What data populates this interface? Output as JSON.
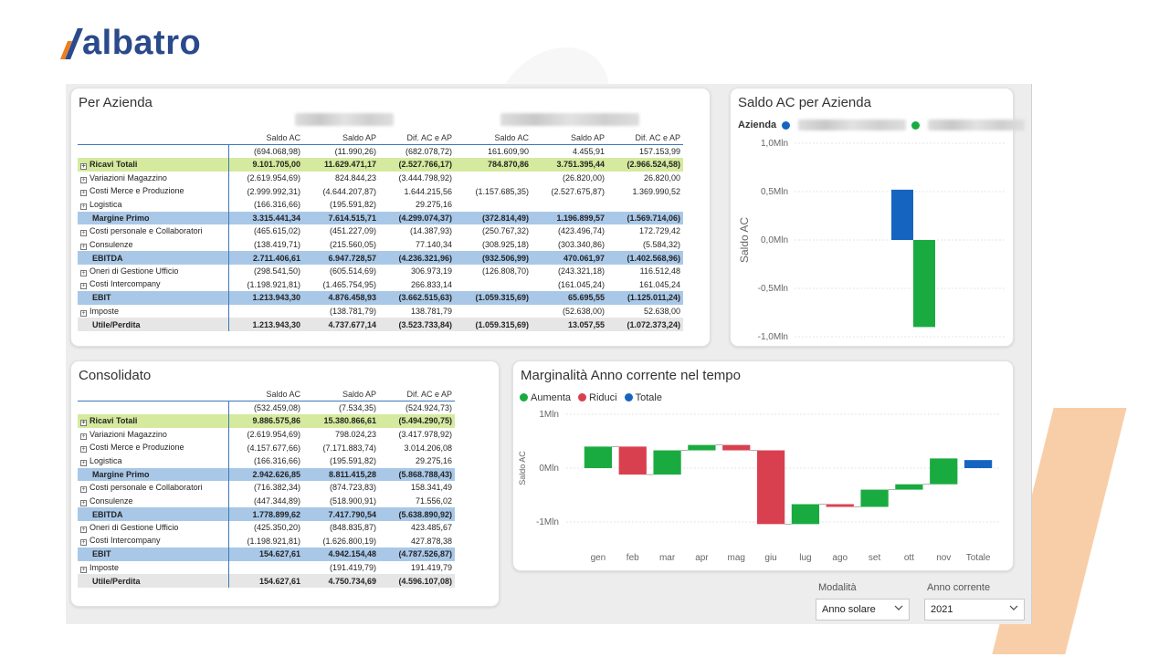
{
  "brand": {
    "name": "albatro",
    "colors": {
      "orange": "#f07c1e",
      "navy": "#2a4a8b"
    }
  },
  "per_azienda": {
    "title": "Per Azienda",
    "columns": [
      "Saldo AC",
      "Saldo AP",
      "Dif. AC e AP",
      "Saldo AC",
      "Saldo AP",
      "Dif. AC e AP"
    ],
    "rows": [
      {
        "label": "",
        "style": "plain",
        "expand": false,
        "values": [
          "(694.068,98)",
          "(11.990,26)",
          "(682.078,72)",
          "161.609,90",
          "4.455,91",
          "157.153,99"
        ]
      },
      {
        "label": "Ricavi Totali",
        "style": "green",
        "expand": true,
        "values": [
          "9.101.705,00",
          "11.629.471,17",
          "(2.527.766,17)",
          "784.870,86",
          "3.751.395,44",
          "(2.966.524,58)"
        ]
      },
      {
        "label": "Variazioni Magazzino",
        "style": "plain",
        "expand": true,
        "values": [
          "(2.619.954,69)",
          "824.844,23",
          "(3.444.798,92)",
          "",
          "(26.820,00)",
          "26.820,00"
        ]
      },
      {
        "label": "Costi Merce e Produzione",
        "style": "plain",
        "expand": true,
        "values": [
          "(2.999.992,31)",
          "(4.644.207,87)",
          "1.644.215,56",
          "(1.157.685,35)",
          "(2.527.675,87)",
          "1.369.990,52"
        ]
      },
      {
        "label": "Logistica",
        "style": "plain",
        "expand": true,
        "values": [
          "(166.316,66)",
          "(195.591,82)",
          "29.275,16",
          "",
          "",
          ""
        ]
      },
      {
        "label": "Margine Primo",
        "style": "blue",
        "expand": false,
        "values": [
          "3.315.441,34",
          "7.614.515,71",
          "(4.299.074,37)",
          "(372.814,49)",
          "1.196.899,57",
          "(1.569.714,06)"
        ]
      },
      {
        "label": "Costi personale e Collaboratori",
        "style": "plain",
        "expand": true,
        "values": [
          "(465.615,02)",
          "(451.227,09)",
          "(14.387,93)",
          "(250.767,32)",
          "(423.496,74)",
          "172.729,42"
        ]
      },
      {
        "label": "Consulenze",
        "style": "plain",
        "expand": true,
        "values": [
          "(138.419,71)",
          "(215.560,05)",
          "77.140,34",
          "(308.925,18)",
          "(303.340,86)",
          "(5.584,32)"
        ]
      },
      {
        "label": "EBITDA",
        "style": "blue",
        "expand": false,
        "values": [
          "2.711.406,61",
          "6.947.728,57",
          "(4.236.321,96)",
          "(932.506,99)",
          "470.061,97",
          "(1.402.568,96)"
        ]
      },
      {
        "label": "Oneri di Gestione Ufficio",
        "style": "plain",
        "expand": true,
        "values": [
          "(298.541,50)",
          "(605.514,69)",
          "306.973,19",
          "(126.808,70)",
          "(243.321,18)",
          "116.512,48"
        ]
      },
      {
        "label": "Costi Intercompany",
        "style": "plain",
        "expand": true,
        "values": [
          "(1.198.921,81)",
          "(1.465.754,95)",
          "266.833,14",
          "",
          "(161.045,24)",
          "161.045,24"
        ]
      },
      {
        "label": "EBIT",
        "style": "blue",
        "expand": false,
        "values": [
          "1.213.943,30",
          "4.876.458,93",
          "(3.662.515,63)",
          "(1.059.315,69)",
          "65.695,55",
          "(1.125.011,24)"
        ]
      },
      {
        "label": "Imposte",
        "style": "plain",
        "expand": true,
        "values": [
          "",
          "(138.781,79)",
          "138.781,79",
          "",
          "(52.638,00)",
          "52.638,00"
        ]
      },
      {
        "label": "Utile/Perdita",
        "style": "grey",
        "expand": false,
        "values": [
          "1.213.943,30",
          "4.737.677,14",
          "(3.523.733,84)",
          "(1.059.315,69)",
          "13.057,55",
          "(1.072.373,24)"
        ]
      }
    ]
  },
  "consolidato": {
    "title": "Consolidato",
    "columns": [
      "Saldo AC",
      "Saldo AP",
      "Dif. AC e AP"
    ],
    "rows": [
      {
        "label": "",
        "style": "plain",
        "expand": false,
        "values": [
          "(532.459,08)",
          "(7.534,35)",
          "(524.924,73)"
        ]
      },
      {
        "label": "Ricavi Totali",
        "style": "green",
        "expand": true,
        "values": [
          "9.886.575,86",
          "15.380.866,61",
          "(5.494.290,75)"
        ]
      },
      {
        "label": "Variazioni Magazzino",
        "style": "plain",
        "expand": true,
        "values": [
          "(2.619.954,69)",
          "798.024,23",
          "(3.417.978,92)"
        ]
      },
      {
        "label": "Costi Merce e Produzione",
        "style": "plain",
        "expand": true,
        "values": [
          "(4.157.677,66)",
          "(7.171.883,74)",
          "3.014.206,08"
        ]
      },
      {
        "label": "Logistica",
        "style": "plain",
        "expand": true,
        "values": [
          "(166.316,66)",
          "(195.591,82)",
          "29.275,16"
        ]
      },
      {
        "label": "Margine Primo",
        "style": "blue",
        "expand": false,
        "values": [
          "2.942.626,85",
          "8.811.415,28",
          "(5.868.788,43)"
        ]
      },
      {
        "label": "Costi personale e Collaboratori",
        "style": "plain",
        "expand": true,
        "values": [
          "(716.382,34)",
          "(874.723,83)",
          "158.341,49"
        ]
      },
      {
        "label": "Consulenze",
        "style": "plain",
        "expand": true,
        "values": [
          "(447.344,89)",
          "(518.900,91)",
          "71.556,02"
        ]
      },
      {
        "label": "EBITDA",
        "style": "blue",
        "expand": false,
        "values": [
          "1.778.899,62",
          "7.417.790,54",
          "(5.638.890,92)"
        ]
      },
      {
        "label": "Oneri di Gestione Ufficio",
        "style": "plain",
        "expand": true,
        "values": [
          "(425.350,20)",
          "(848.835,87)",
          "423.485,67"
        ]
      },
      {
        "label": "Costi Intercompany",
        "style": "plain",
        "expand": true,
        "values": [
          "(1.198.921,81)",
          "(1.626.800,19)",
          "427.878,38"
        ]
      },
      {
        "label": "EBIT",
        "style": "blue",
        "expand": false,
        "values": [
          "154.627,61",
          "4.942.154,48",
          "(4.787.526,87)"
        ]
      },
      {
        "label": "Imposte",
        "style": "plain",
        "expand": true,
        "values": [
          "",
          "(191.419,79)",
          "191.419,79"
        ]
      },
      {
        "label": "Utile/Perdita",
        "style": "grey",
        "expand": false,
        "values": [
          "154.627,61",
          "4.750.734,69",
          "(4.596.107,08)"
        ]
      }
    ]
  },
  "saldo_chart": {
    "title": "Saldo AC per Azienda",
    "legend_title": "Azienda",
    "ylabel": "Saldo AC",
    "colors": [
      "#1565c0",
      "#1aab40"
    ]
  },
  "marginalita_chart": {
    "title": "Marginalità Anno corrente nel tempo",
    "ylabel": "Saldo AC",
    "legend": [
      {
        "label": "Aumenta",
        "color": "#1aab40"
      },
      {
        "label": "Riduci",
        "color": "#d9404f"
      },
      {
        "label": "Totale",
        "color": "#1565c0"
      }
    ]
  },
  "chart_data": [
    {
      "type": "bar",
      "title": "Saldo AC per Azienda",
      "ylabel": "Saldo AC",
      "ylim": [
        -1.0,
        1.0
      ],
      "yticks": [
        "1,0Mln",
        "0,5Mln",
        "0,0Mln",
        "-0,5Mln",
        "-1,0Mln"
      ],
      "yticks_values": [
        1.0,
        0.5,
        0.0,
        -0.5,
        -1.0
      ],
      "unit": "Mln",
      "series": [
        {
          "values": [
            0.52
          ],
          "color": "#1565c0"
        },
        {
          "values": [
            -0.9
          ],
          "color": "#1aab40"
        }
      ]
    },
    {
      "type": "bar",
      "subtype": "waterfall",
      "title": "Marginalità Anno corrente nel tempo",
      "ylabel": "Saldo AC",
      "ylim": [
        -1.0,
        1.0
      ],
      "yticks": [
        "1Mln",
        "0Mln",
        "-1Mln"
      ],
      "yticks_values": [
        1.0,
        0.0,
        -1.0
      ],
      "unit": "Mln",
      "categories": [
        "gen",
        "feb",
        "mar",
        "apr",
        "mag",
        "giu",
        "lug",
        "ago",
        "set",
        "ott",
        "nov",
        "Totale"
      ],
      "deltas": [
        0.4,
        -0.52,
        0.45,
        0.1,
        -0.1,
        -1.37,
        0.37,
        -0.05,
        0.32,
        0.1,
        0.48,
        0.15
      ],
      "kinds": [
        "up",
        "down",
        "up",
        "up",
        "down",
        "down",
        "up",
        "down",
        "up",
        "up",
        "up",
        "total"
      ]
    }
  ],
  "slicers": {
    "modalita": {
      "label": "Modalità",
      "value": "Anno solare"
    },
    "anno": {
      "label": "Anno corrente",
      "value": "2021"
    }
  }
}
